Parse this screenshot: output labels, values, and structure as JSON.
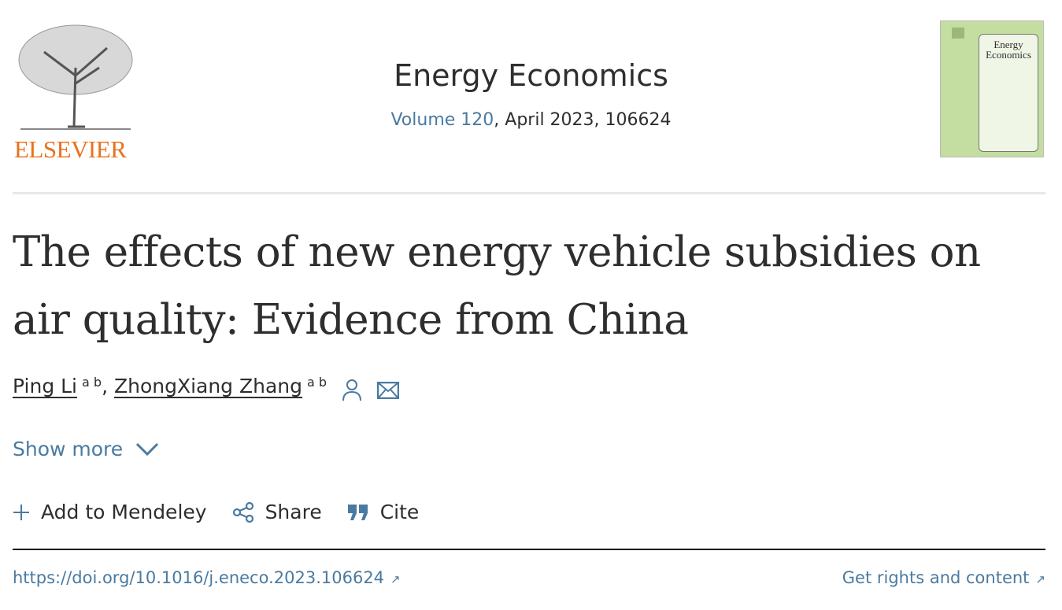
{
  "publisher": {
    "name": "ELSEVIER",
    "logo_icon": "elsevier-tree-logo",
    "color": "#e9711c"
  },
  "journal": {
    "title": "Energy Economics",
    "volume_link": "Volume 120",
    "issue_info": ", April 2023, 106624",
    "cover_title_line1": "Energy",
    "cover_title_line2": "Economics",
    "cover_color": "#c3dea0"
  },
  "article": {
    "title": "The effects of new energy vehicle subsidies on air quality: Evidence from China"
  },
  "authors": [
    {
      "name": "Ping Li",
      "affil": "a b"
    },
    {
      "name": "ZhongXiang Zhang",
      "affil": "a b"
    }
  ],
  "author_icons": [
    "person-icon",
    "envelope-icon"
  ],
  "show_more": "Show more",
  "actions": [
    {
      "label": "Add to Mendeley",
      "icon": "plus-icon"
    },
    {
      "label": "Share",
      "icon": "share-icon"
    },
    {
      "label": "Cite",
      "icon": "quote-icon"
    }
  ],
  "doi": "https://doi.org/10.1016/j.eneco.2023.106624",
  "rights": "Get rights and content",
  "colors": {
    "link": "#4a7aa0",
    "text": "#2e2e2e"
  }
}
